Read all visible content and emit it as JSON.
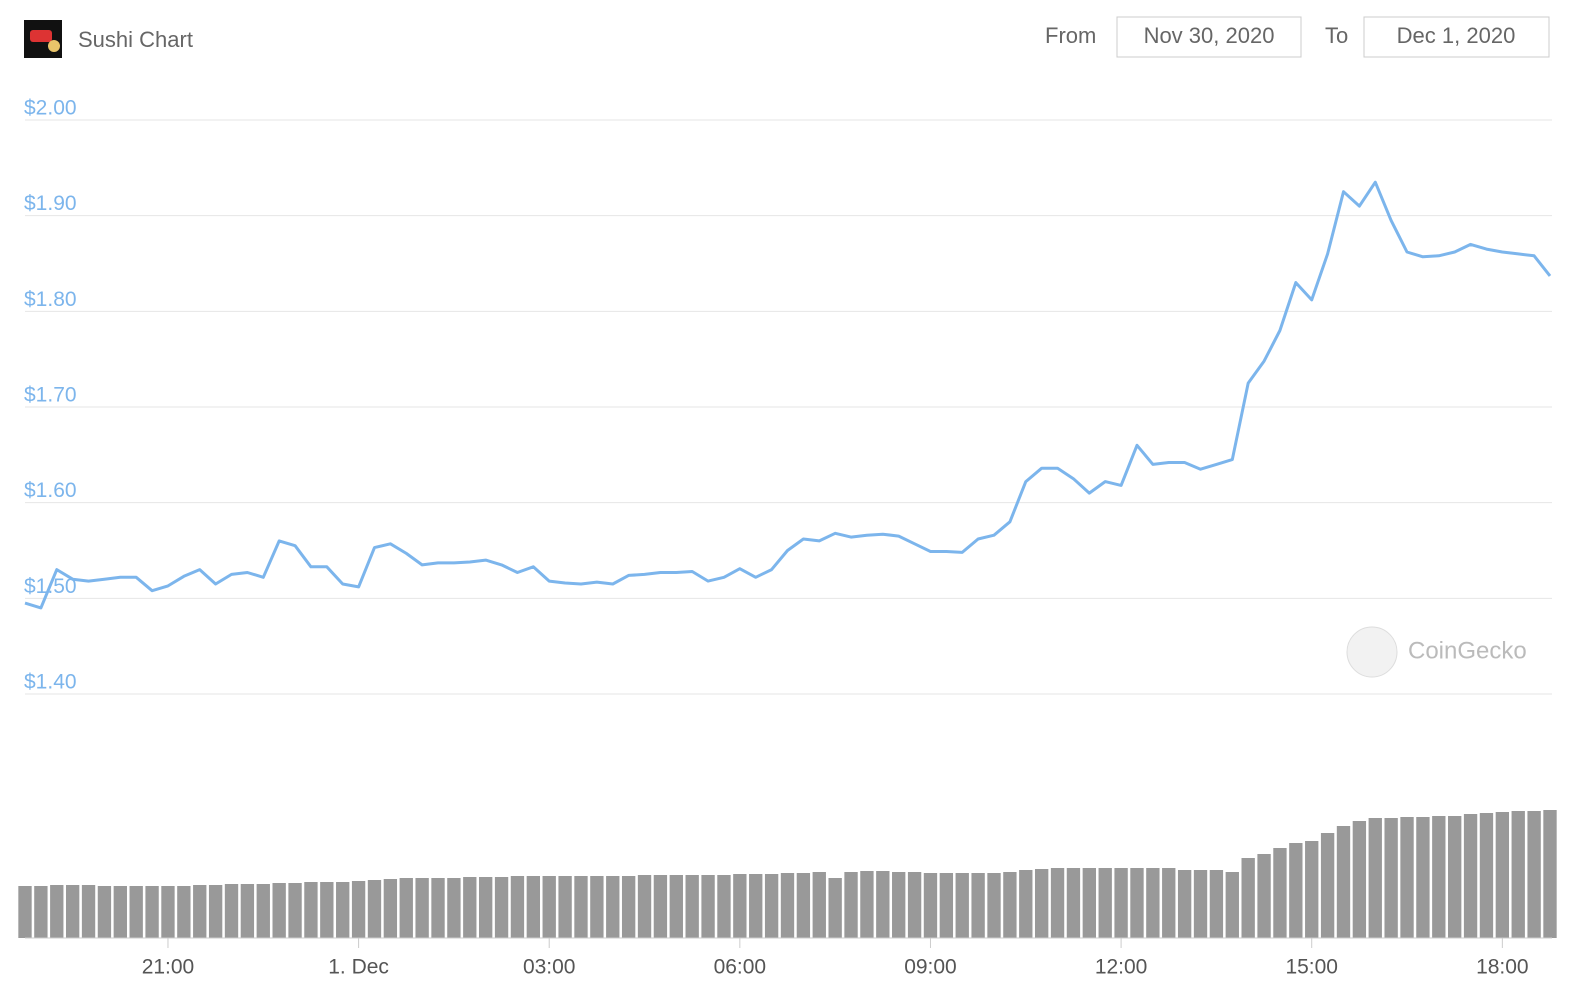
{
  "header": {
    "title": "Sushi Chart",
    "from_label": "From",
    "from_date": "Nov 30, 2020",
    "to_label": "To",
    "to_date": "Dec 1, 2020"
  },
  "chart_data": {
    "type": "line",
    "color": "#7cb5ec",
    "volume_color": "#999999",
    "grid": true,
    "watermark": "CoinGecko",
    "categories": [
      null,
      null,
      null,
      null,
      null,
      null,
      null,
      null,
      null,
      "21:00",
      null,
      null,
      null,
      null,
      null,
      null,
      null,
      null,
      null,
      null,
      null,
      "1. Dec",
      null,
      null,
      null,
      null,
      null,
      null,
      null,
      null,
      null,
      null,
      null,
      "03:00",
      null,
      null,
      null,
      null,
      null,
      null,
      null,
      null,
      null,
      null,
      null,
      "06:00",
      null,
      null,
      null,
      null,
      null,
      null,
      null,
      null,
      null,
      null,
      null,
      "09:00",
      null,
      null,
      null,
      null,
      null,
      null,
      null,
      null,
      null,
      null,
      null,
      "12:00",
      null,
      null,
      null,
      null,
      null,
      null,
      null,
      null,
      null,
      null,
      null,
      "15:00",
      null,
      null,
      null,
      null,
      null,
      null,
      null,
      null,
      null,
      null,
      null,
      "18:00",
      null,
      null,
      null
    ],
    "values": [
      1.495,
      1.49,
      1.53,
      1.52,
      1.518,
      1.52,
      1.522,
      1.522,
      1.508,
      1.513,
      1.523,
      1.53,
      1.515,
      1.525,
      1.527,
      1.522,
      1.56,
      1.555,
      1.533,
      1.533,
      1.515,
      1.512,
      1.553,
      1.557,
      1.547,
      1.535,
      1.537,
      1.537,
      1.538,
      1.54,
      1.535,
      1.527,
      1.533,
      1.518,
      1.516,
      1.515,
      1.517,
      1.515,
      1.524,
      1.525,
      1.527,
      1.527,
      1.528,
      1.518,
      1.522,
      1.531,
      1.522,
      1.53,
      1.55,
      1.562,
      1.56,
      1.568,
      1.564,
      1.566,
      1.567,
      1.565,
      1.557,
      1.549,
      1.549,
      1.548,
      1.562,
      1.566,
      1.58,
      1.622,
      1.636,
      1.636,
      1.625,
      1.61,
      1.622,
      1.618,
      1.66,
      1.64,
      1.642,
      1.642,
      1.635,
      1.64,
      1.645,
      1.725,
      1.748,
      1.78,
      1.83,
      1.812,
      1.86,
      1.925,
      1.91,
      1.935,
      1.895,
      1.862,
      1.857,
      1.858,
      1.862,
      1.87,
      1.865,
      1.862,
      1.86,
      1.858,
      1.837
    ],
    "volume_values": [
      52,
      52,
      53,
      53,
      53,
      52,
      52,
      52,
      52,
      52,
      52,
      53,
      53,
      54,
      54,
      54,
      55,
      55,
      56,
      56,
      56,
      57,
      58,
      59,
      60,
      60,
      60,
      60,
      61,
      61,
      61,
      62,
      62,
      62,
      62,
      62,
      62,
      62,
      62,
      63,
      63,
      63,
      63,
      63,
      63,
      64,
      64,
      64,
      65,
      65,
      66,
      60,
      66,
      67,
      67,
      66,
      66,
      65,
      65,
      65,
      65,
      65,
      66,
      68,
      69,
      70,
      70,
      70,
      70,
      70,
      70,
      70,
      70,
      68,
      68,
      68,
      66,
      80,
      84,
      90,
      95,
      97,
      105,
      112,
      117,
      120,
      120,
      121,
      121,
      122,
      122,
      124,
      125,
      126,
      127,
      127,
      128
    ],
    "ylim": [
      1.4,
      2.0
    ],
    "yticks": [
      {
        "value": 1.4,
        "label": "$1.40"
      },
      {
        "value": 1.5,
        "label": "$1.50"
      },
      {
        "value": 1.6,
        "label": "$1.60"
      },
      {
        "value": 1.7,
        "label": "$1.70"
      },
      {
        "value": 1.8,
        "label": "$1.80"
      },
      {
        "value": 1.9,
        "label": "$1.90"
      },
      {
        "value": 2.0,
        "label": "$2.00"
      }
    ]
  }
}
